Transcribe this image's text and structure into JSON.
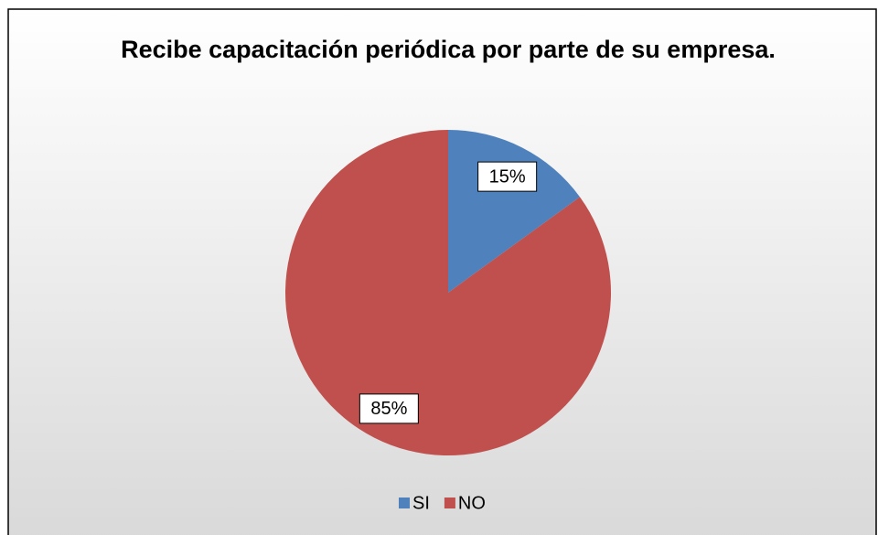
{
  "chart_data": {
    "type": "pie",
    "title": "Recibe capacitación periódica por parte de su empresa.",
    "categories": [
      "SI",
      "NO"
    ],
    "values": [
      15,
      85
    ],
    "value_labels": [
      "15%",
      "85%"
    ],
    "colors": [
      "#4f81bd",
      "#c0504d"
    ],
    "legend": "bottom"
  }
}
